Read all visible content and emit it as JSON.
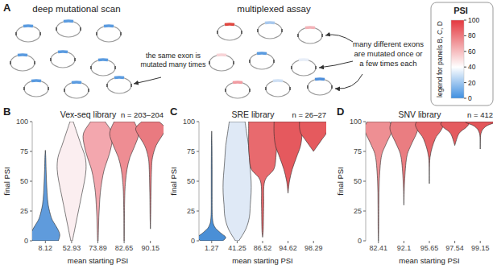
{
  "panel_a": {
    "label": "A",
    "left_title": "deep mutational scan",
    "left_note": [
      "the same exon is",
      "mutated many times"
    ],
    "left_exon_colors": [
      "#5a9be0",
      "#5a9be0",
      "#5a9be0",
      "#5a9be0",
      "#5a9be0",
      "#5a9be0",
      "#5a9be0",
      "#5a9be0",
      "#5a9be0"
    ],
    "right_title": "multiplexed assay",
    "right_note": [
      "many different exons",
      "are mutated once or",
      "a few times each"
    ],
    "right_exon_colors": [
      "#e0463f",
      "#a9c9ee",
      "#f3b3b8",
      "#f7d3d6",
      "#5a9be0",
      "#e8eef8",
      "#f19ca2",
      "#cfe0f4",
      "#4f8fdb"
    ]
  },
  "legend": {
    "title": "PSI",
    "caption": "legend for panels B, C, D",
    "range": [
      0,
      100
    ],
    "ticks": [
      0,
      20,
      40,
      60,
      80,
      100
    ],
    "stops": [
      {
        "value": 0,
        "color": "#3f8fe0"
      },
      {
        "value": 40,
        "color": "#ffffff"
      },
      {
        "value": 100,
        "color": "#e4383f"
      }
    ]
  },
  "chart_data": [
    {
      "type": "violin",
      "panel": "B",
      "title": "Vex-seq library",
      "n_label": "n = 203–204",
      "x_label": "mean starting PSI",
      "y_label": "final PSI",
      "categories": [
        "8.12",
        "52.93",
        "73.89",
        "82.65",
        "90.15"
      ],
      "colors": [
        "#5f9bdc",
        "#fbeef0",
        "#f3a7ae",
        "#ee8d93",
        "#e97a80"
      ],
      "ylim": [
        0,
        100
      ],
      "yticks": [
        0,
        25,
        50,
        75,
        100
      ],
      "violins": [
        {
          "y": [
            0,
            5,
            10,
            15,
            20,
            30,
            40,
            50,
            60,
            70,
            76
          ],
          "density": [
            0.9,
            1,
            0.85,
            0.6,
            0.4,
            0.2,
            0.12,
            0.08,
            0.05,
            0.03,
            0
          ]
        },
        {
          "y": [
            0,
            10,
            20,
            30,
            40,
            50,
            60,
            70,
            80,
            90,
            100
          ],
          "density": [
            0.05,
            0.2,
            0.35,
            0.5,
            0.65,
            0.8,
            0.9,
            0.85,
            0.6,
            0.35,
            0.1
          ]
        },
        {
          "y": [
            0,
            10,
            20,
            30,
            40,
            50,
            60,
            70,
            80,
            90,
            100
          ],
          "density": [
            0.02,
            0.04,
            0.06,
            0.1,
            0.15,
            0.25,
            0.4,
            0.65,
            0.85,
            0.9,
            0.45
          ]
        },
        {
          "y": [
            0,
            20,
            40,
            50,
            60,
            70,
            80,
            90,
            100
          ],
          "density": [
            0.01,
            0.02,
            0.05,
            0.1,
            0.2,
            0.4,
            0.75,
            1,
            0.7
          ]
        },
        {
          "y": [
            10,
            20,
            40,
            60,
            70,
            80,
            90,
            95,
            100
          ],
          "density": [
            0,
            0.02,
            0.04,
            0.08,
            0.15,
            0.4,
            0.9,
            1,
            0.6
          ]
        }
      ]
    },
    {
      "type": "violin",
      "panel": "C",
      "title": "SRE library",
      "n_label": "n = 26–27",
      "x_label": "mean starting PSI",
      "y_label": "final PSI",
      "categories": [
        "1.27",
        "41.25",
        "86.52",
        "94.62",
        "98.29"
      ],
      "colors": [
        "#4a8fd6",
        "#dfe9f6",
        "#e86a6e",
        "#e5595e",
        "#e55a5e"
      ],
      "ylim": [
        0,
        100
      ],
      "yticks": [
        0,
        25,
        50,
        75,
        100
      ],
      "violins": [
        {
          "y": [
            0,
            3,
            7,
            12,
            20,
            40,
            60,
            80,
            92
          ],
          "density": [
            0.8,
            1,
            0.6,
            0.2,
            0.05,
            0.03,
            0.03,
            0.02,
            0
          ]
        },
        {
          "y": [
            0,
            10,
            20,
            30,
            40,
            50,
            60,
            70,
            80,
            90,
            100
          ],
          "density": [
            0.1,
            0.5,
            0.7,
            0.75,
            0.8,
            0.8,
            0.75,
            0.7,
            0.65,
            0.55,
            0.45
          ]
        },
        {
          "y": [
            3,
            10,
            30,
            50,
            60,
            70,
            80,
            90,
            100
          ],
          "density": [
            0,
            0.05,
            0.08,
            0.15,
            0.8,
            0.95,
            1,
            1,
            1
          ]
        },
        {
          "y": [
            40,
            50,
            60,
            70,
            80,
            90,
            100
          ],
          "density": [
            0,
            0.1,
            0.3,
            0.6,
            0.9,
            1,
            1
          ]
        },
        {
          "y": [
            75,
            80,
            85,
            90,
            95,
            100
          ],
          "density": [
            0,
            0.3,
            0.6,
            0.9,
            1,
            1
          ]
        }
      ]
    },
    {
      "type": "violin",
      "panel": "D",
      "title": "SNV library",
      "n_label": "n = 412",
      "x_label": "mean starting PSI",
      "y_label": "final PSI",
      "categories": [
        "82.41",
        "92.1",
        "95.65",
        "97.54",
        "99.15"
      ],
      "colors": [
        "#ee8f93",
        "#ea7d81",
        "#e66468",
        "#e45b5f",
        "#e3565a"
      ],
      "ylim": [
        0,
        100
      ],
      "yticks": [
        0,
        25,
        50,
        75,
        100
      ],
      "violins": [
        {
          "y": [
            0,
            10,
            30,
            50,
            70,
            80,
            90,
            95,
            100
          ],
          "density": [
            0,
            0.02,
            0.03,
            0.06,
            0.2,
            0.5,
            0.9,
            1,
            0.8
          ]
        },
        {
          "y": [
            30,
            50,
            70,
            80,
            90,
            95,
            100
          ],
          "density": [
            0,
            0.05,
            0.2,
            0.5,
            0.9,
            1,
            0.9
          ]
        },
        {
          "y": [
            48,
            70,
            85,
            92,
            97,
            100
          ],
          "density": [
            0,
            0.05,
            0.4,
            0.8,
            1,
            0.9
          ]
        },
        {
          "y": [
            80,
            90,
            95,
            98,
            100
          ],
          "density": [
            0,
            0.3,
            0.8,
            1,
            0.9
          ]
        },
        {
          "y": [
            77,
            90,
            96,
            99,
            100
          ],
          "density": [
            0,
            0.05,
            0.4,
            1,
            1
          ]
        }
      ]
    }
  ]
}
